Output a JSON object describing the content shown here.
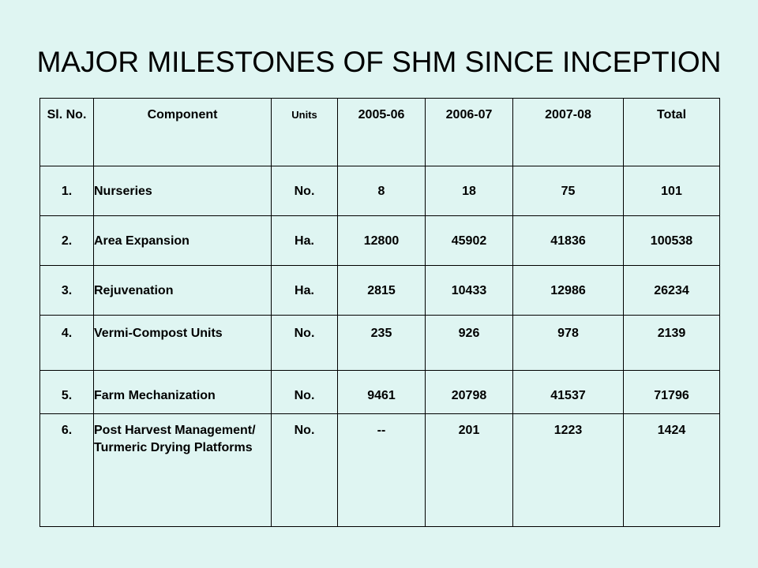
{
  "title": "MAJOR MILESTONES OF SHM SINCE INCEPTION",
  "table": {
    "headers": {
      "sl_no": "Sl. No.",
      "component": "Component",
      "units": "Units",
      "y1": "2005-06",
      "y2": "2006-07",
      "y3": "2007-08",
      "total": "Total"
    },
    "rows": [
      {
        "sl": "1.",
        "component": "Nurseries",
        "units": "No.",
        "y1": "8",
        "y2": "18",
        "y3": "75",
        "total": "101"
      },
      {
        "sl": "2.",
        "component": "Area Expansion",
        "units": "Ha.",
        "y1": "12800",
        "y2": "45902",
        "y3": "41836",
        "total": "100538"
      },
      {
        "sl": "3.",
        "component": "Rejuvenation",
        "units": "Ha.",
        "y1": "2815",
        "y2": "10433",
        "y3": "12986",
        "total": "26234"
      },
      {
        "sl": "4.",
        "component": "Vermi-Compost Units",
        "units": "No.",
        "y1": "235",
        "y2": "926",
        "y3": "978",
        "total": "2139"
      },
      {
        "sl": "5.",
        "component": "Farm Mechanization",
        "units": "No.",
        "y1": "9461",
        "y2": "20798",
        "y3": "41537",
        "total": "71796"
      },
      {
        "sl": "6.",
        "component": "Post Harvest Management/ Turmeric Drying Platforms",
        "units": "No.",
        "y1": "--",
        "y2": "201",
        "y3": "1223",
        "total": "1424"
      }
    ]
  }
}
